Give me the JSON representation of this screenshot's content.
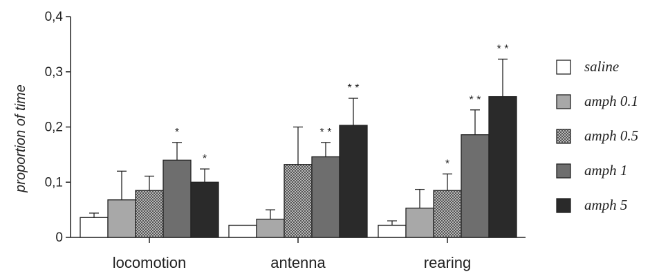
{
  "chart_data": {
    "type": "bar",
    "title": "",
    "xlabel": "",
    "ylabel": "proportion of time",
    "ylim": [
      0,
      0.4
    ],
    "yticks": [
      {
        "value": 0,
        "label": "0"
      },
      {
        "value": 0.1,
        "label": "0,1"
      },
      {
        "value": 0.2,
        "label": "0,2"
      },
      {
        "value": 0.3,
        "label": "0,3"
      },
      {
        "value": 0.4,
        "label": "0,4"
      }
    ],
    "categories": [
      "locomotion",
      "antenna",
      "rearing"
    ],
    "legend_position": "right",
    "series": [
      {
        "name": "saline",
        "values": [
          0.036,
          0.022,
          0.022
        ],
        "errors": [
          0.008,
          0.0,
          0.008
        ],
        "sig": [
          "",
          "",
          ""
        ],
        "fill": "#ffffff",
        "pattern": "none"
      },
      {
        "name": "amph 0.1",
        "values": [
          0.068,
          0.033,
          0.053
        ],
        "errors": [
          0.052,
          0.017,
          0.034
        ],
        "sig": [
          "",
          "",
          ""
        ],
        "fill": "#a8a8a8",
        "pattern": "none"
      },
      {
        "name": "amph 0.5",
        "values": [
          0.085,
          0.132,
          0.085
        ],
        "errors": [
          0.026,
          0.068,
          0.03
        ],
        "sig": [
          "",
          "",
          "*"
        ],
        "fill": "#9a9a9a",
        "pattern": "checker"
      },
      {
        "name": "amph 1",
        "values": [
          0.14,
          0.146,
          0.186
        ],
        "errors": [
          0.032,
          0.026,
          0.045
        ],
        "sig": [
          "*",
          "* *",
          "* *"
        ],
        "fill": "#6e6e6e",
        "pattern": "none"
      },
      {
        "name": "amph 5",
        "values": [
          0.1,
          0.203,
          0.255
        ],
        "errors": [
          0.024,
          0.049,
          0.068
        ],
        "sig": [
          "*",
          "* *",
          "* *"
        ],
        "fill": "#2a2a2a",
        "pattern": "none"
      }
    ]
  }
}
